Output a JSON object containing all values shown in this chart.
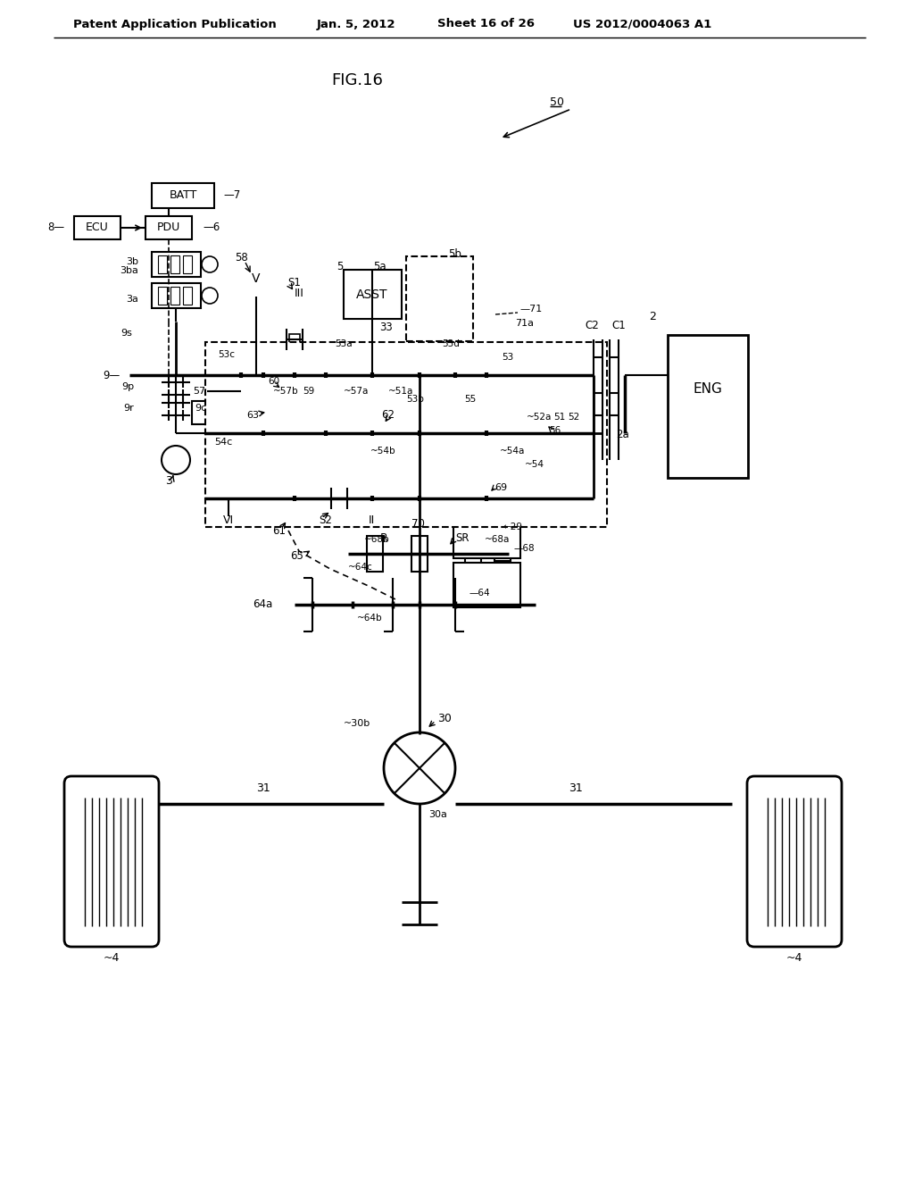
{
  "title": "FIG.16",
  "header_left": "Patent Application Publication",
  "header_date": "Jan. 5, 2012",
  "header_sheet": "Sheet 16 of 26",
  "header_right": "US 2012/0004063 A1",
  "bg_color": "#ffffff"
}
